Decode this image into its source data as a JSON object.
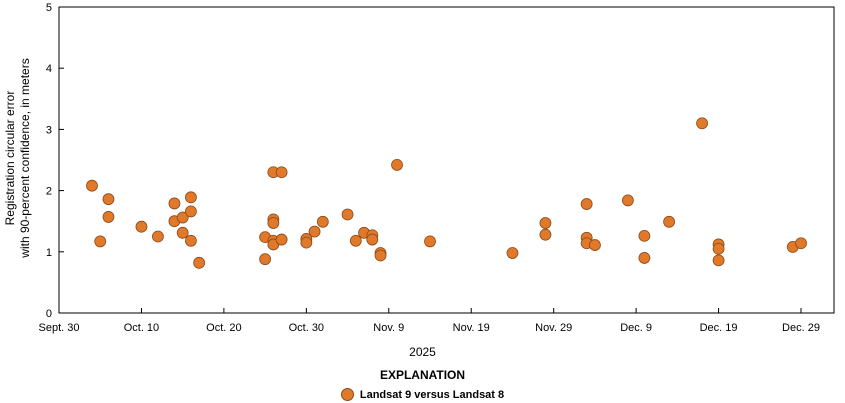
{
  "chart_data": {
    "type": "scatter",
    "ylabel_lines": [
      "Registration circular error",
      "with 90-percent confidence, in meters"
    ],
    "xlabel": "2025",
    "ylim": [
      0,
      5
    ],
    "yticks": [
      0,
      1,
      2,
      3,
      4,
      5
    ],
    "xlim_days": [
      0,
      94
    ],
    "xtick_labels": [
      "Sept. 30",
      "Oct. 10",
      "Oct. 20",
      "Oct. 30",
      "Nov. 9",
      "Nov. 19",
      "Nov. 29",
      "Dec. 9",
      "Dec. 19",
      "Dec. 29"
    ],
    "xtick_days": [
      0,
      10,
      20,
      30,
      40,
      50,
      60,
      70,
      80,
      90
    ],
    "grid": false,
    "legend_title": "EXPLANATION",
    "series": [
      {
        "name": "Landsat 9 versus Landsat 8",
        "color": "#e07a2a",
        "points": [
          {
            "x": "Oct. 4",
            "y": 2.08
          },
          {
            "x": "Oct. 5",
            "y": 1.17
          },
          {
            "x": "Oct. 6",
            "y": 1.86
          },
          {
            "x": "Oct. 6",
            "y": 1.57
          },
          {
            "x": "Oct. 10",
            "y": 1.41
          },
          {
            "x": "Oct. 12",
            "y": 1.25
          },
          {
            "x": "Oct. 14",
            "y": 1.79
          },
          {
            "x": "Oct. 14",
            "y": 1.5
          },
          {
            "x": "Oct. 15",
            "y": 1.56
          },
          {
            "x": "Oct. 15",
            "y": 1.31
          },
          {
            "x": "Oct. 16",
            "y": 1.89
          },
          {
            "x": "Oct. 16",
            "y": 1.66
          },
          {
            "x": "Oct. 16",
            "y": 1.18
          },
          {
            "x": "Oct. 17",
            "y": 0.82
          },
          {
            "x": "Oct. 25",
            "y": 1.24
          },
          {
            "x": "Oct. 25",
            "y": 0.88
          },
          {
            "x": "Oct. 26",
            "y": 2.3
          },
          {
            "x": "Oct. 26",
            "y": 1.53
          },
          {
            "x": "Oct. 26",
            "y": 1.47
          },
          {
            "x": "Oct. 26",
            "y": 1.18
          },
          {
            "x": "Oct. 26",
            "y": 1.12
          },
          {
            "x": "Oct. 27",
            "y": 2.3
          },
          {
            "x": "Oct. 27",
            "y": 1.2
          },
          {
            "x": "Oct. 30",
            "y": 1.21
          },
          {
            "x": "Oct. 30",
            "y": 1.15
          },
          {
            "x": "Oct. 31",
            "y": 1.33
          },
          {
            "x": "Nov. 1",
            "y": 1.49
          },
          {
            "x": "Nov. 4",
            "y": 1.61
          },
          {
            "x": "Nov. 5",
            "y": 1.18
          },
          {
            "x": "Nov. 6",
            "y": 1.31
          },
          {
            "x": "Nov. 7",
            "y": 1.27
          },
          {
            "x": "Nov. 7",
            "y": 1.2
          },
          {
            "x": "Nov. 8",
            "y": 0.98
          },
          {
            "x": "Nov. 8",
            "y": 0.94
          },
          {
            "x": "Nov. 10",
            "y": 2.42
          },
          {
            "x": "Nov. 14",
            "y": 1.17
          },
          {
            "x": "Nov. 24",
            "y": 0.98
          },
          {
            "x": "Nov. 28",
            "y": 1.47
          },
          {
            "x": "Nov. 28",
            "y": 1.28
          },
          {
            "x": "Dec. 3",
            "y": 1.78
          },
          {
            "x": "Dec. 3",
            "y": 1.23
          },
          {
            "x": "Dec. 3",
            "y": 1.14
          },
          {
            "x": "Dec. 4",
            "y": 1.11
          },
          {
            "x": "Dec. 8",
            "y": 1.84
          },
          {
            "x": "Dec. 10",
            "y": 1.26
          },
          {
            "x": "Dec. 10",
            "y": 0.9
          },
          {
            "x": "Dec. 13",
            "y": 1.49
          },
          {
            "x": "Dec. 17",
            "y": 3.1
          },
          {
            "x": "Dec. 19",
            "y": 1.12
          },
          {
            "x": "Dec. 19",
            "y": 1.05
          },
          {
            "x": "Dec. 19",
            "y": 0.86
          },
          {
            "x": "Dec. 28",
            "y": 1.08
          },
          {
            "x": "Dec. 29",
            "y": 1.14
          }
        ]
      }
    ]
  }
}
